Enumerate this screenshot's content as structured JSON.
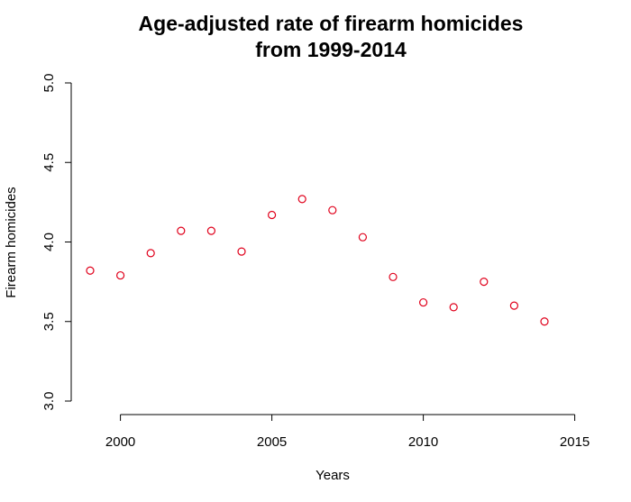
{
  "chart_data": {
    "type": "scatter",
    "title_lines": [
      "Age-adjusted rate of firearm homicides",
      "from 1999-2014"
    ],
    "xlabel": "Years",
    "ylabel": "Firearm homicides",
    "x": [
      1999,
      2000,
      2001,
      2002,
      2003,
      2004,
      2005,
      2006,
      2007,
      2008,
      2009,
      2010,
      2011,
      2012,
      2013,
      2014
    ],
    "y": [
      3.82,
      3.79,
      3.93,
      4.07,
      4.07,
      3.94,
      4.17,
      4.27,
      4.2,
      4.03,
      3.78,
      3.62,
      3.59,
      3.75,
      3.6,
      3.5
    ],
    "xlim": [
      1999,
      2015
    ],
    "ylim": [
      3.0,
      5.0
    ],
    "x_ticks": [
      2000,
      2005,
      2010,
      2015
    ],
    "x_tick_labels": [
      "2000",
      "2005",
      "2010",
      "2015"
    ],
    "y_ticks": [
      3.0,
      3.5,
      4.0,
      4.5,
      5.0
    ],
    "y_tick_labels": [
      "3.0",
      "3.5",
      "4.0",
      "4.5",
      "5.0"
    ],
    "grid": false,
    "marker": "open-circle",
    "point_color": "#e0001b"
  }
}
